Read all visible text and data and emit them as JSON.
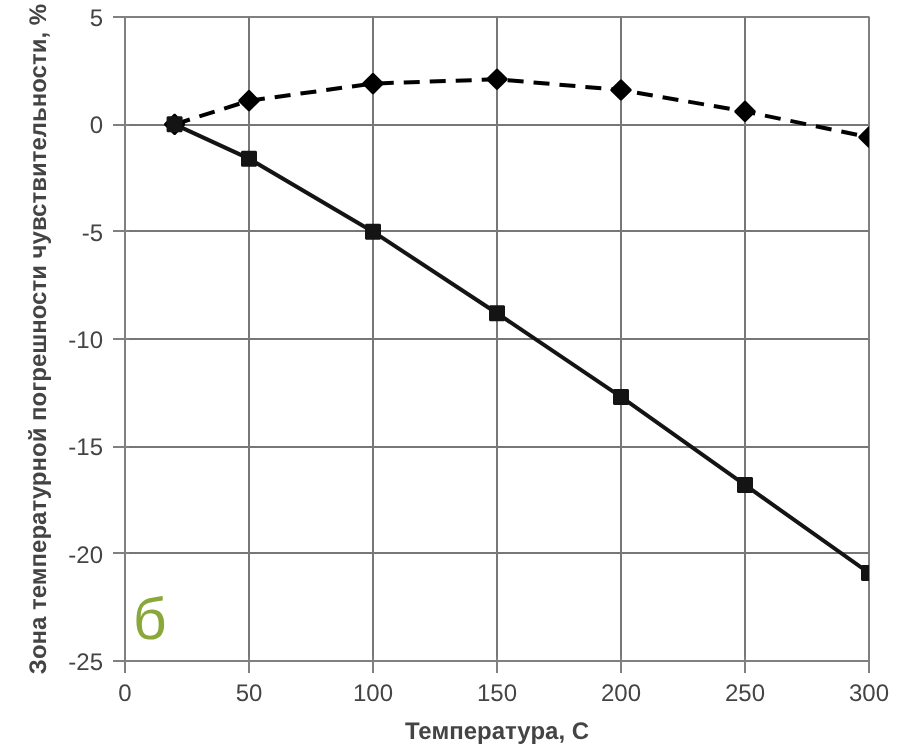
{
  "chart_data": {
    "type": "line",
    "xlabel": "Температура, С",
    "ylabel": "Зона температурной погрешности чувствительности, %",
    "xlim": [
      0,
      300
    ],
    "xticks": [
      0,
      50,
      100,
      150,
      200,
      250,
      300
    ],
    "ylim": [
      -25,
      5
    ],
    "yticks": [
      -25,
      -20,
      -15,
      -10,
      -5,
      0,
      5
    ],
    "grid": true,
    "x": [
      20,
      50,
      100,
      150,
      200,
      250,
      300
    ],
    "series": [
      {
        "color": "#000000",
        "values": [
          0,
          1.1,
          1.9,
          2.1,
          1.6,
          0.6,
          -0.6
        ],
        "marker": "diamond",
        "line_style": "dashed"
      },
      {
        "color": "#141414",
        "values": [
          0,
          -1.6,
          -5.0,
          -8.8,
          -12.7,
          -16.8,
          -20.9
        ],
        "marker": "square",
        "line_style": "solid"
      }
    ],
    "annotations": [
      "б"
    ]
  }
}
